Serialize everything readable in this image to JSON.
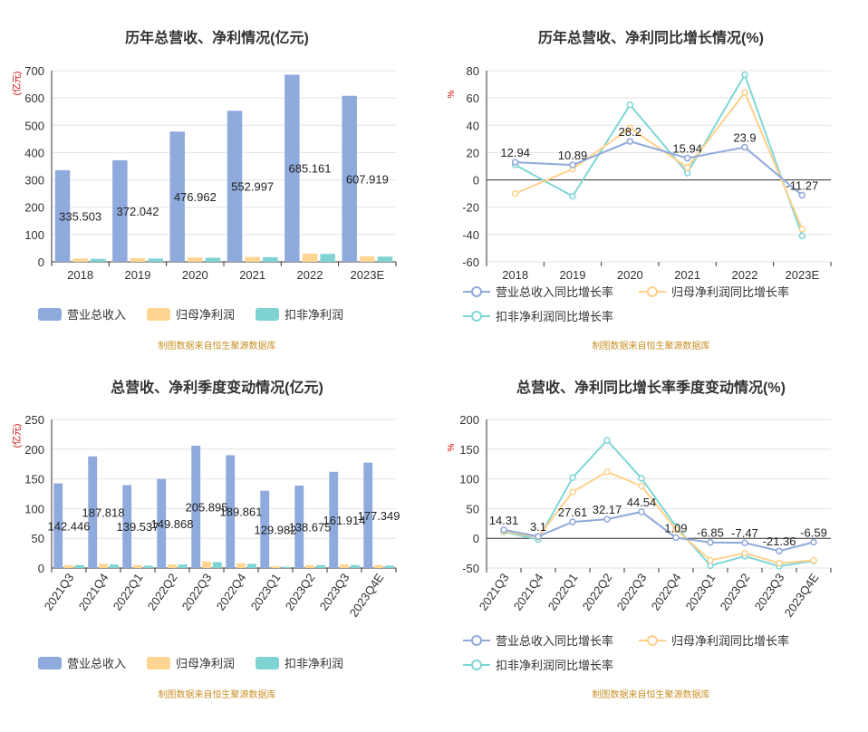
{
  "colors": {
    "revenue": "#8faadc",
    "net": "#ffd591",
    "deducted": "#7fd3d3",
    "revenue_line": "#8fa9db",
    "net_line": "#ffd08a",
    "deducted_line": "#7fd6d6",
    "source": "#c8922a",
    "ylabel": "#d00000"
  },
  "source_text": "制图数据来自恒生聚源数据库",
  "chart_data": [
    {
      "type": "bar",
      "title": "历年总营收、净利情况(亿元)",
      "ylabel": "(亿元)",
      "ylim": [
        0,
        700
      ],
      "yticks": [
        0,
        100,
        200,
        300,
        400,
        500,
        600,
        700
      ],
      "categories": [
        "2018",
        "2019",
        "2020",
        "2021",
        "2022",
        "2023E"
      ],
      "series": [
        {
          "name": "营业总收入",
          "values": [
            335.503,
            372.042,
            476.962,
            552.997,
            685.161,
            607.919
          ],
          "labels": [
            "335.503",
            "372.042",
            "476.962",
            "552.997",
            "685.161",
            "607.919"
          ]
        },
        {
          "name": "归母净利润",
          "values": [
            12,
            13,
            16,
            18,
            30,
            20
          ]
        },
        {
          "name": "扣非净利润",
          "values": [
            11,
            12,
            15,
            17,
            29,
            19
          ]
        }
      ],
      "legend": "bottom-left"
    },
    {
      "type": "line",
      "title": "历年总营收、净利同比增长情况(%)",
      "ylabel": "%",
      "ylim": [
        -60,
        80
      ],
      "yticks": [
        -60,
        -40,
        -20,
        0,
        20,
        40,
        60,
        80
      ],
      "categories": [
        "2018",
        "2019",
        "2020",
        "2021",
        "2022",
        "2023E"
      ],
      "series": [
        {
          "name": "营业总收入同比增长率",
          "values": [
            12.94,
            10.89,
            28.2,
            15.94,
            23.9,
            -11.27
          ],
          "labels": [
            "12.94",
            "10.89",
            "28.2",
            "15.94",
            "23.9",
            "-11.27"
          ]
        },
        {
          "name": "归母净利润同比增长率",
          "values": [
            -10,
            8,
            38,
            9,
            64,
            -36
          ]
        },
        {
          "name": "扣非净利润同比增长率",
          "values": [
            11,
            -12,
            55,
            5,
            77,
            -41
          ]
        }
      ],
      "legend": "bottom-left"
    },
    {
      "type": "bar",
      "title": "总营收、净利季度变动情况(亿元)",
      "ylabel": "(亿元)",
      "ylim": [
        0,
        250
      ],
      "yticks": [
        0,
        50,
        100,
        150,
        200,
        250
      ],
      "categories": [
        "2021Q3",
        "2021Q4",
        "2022Q1",
        "2022Q2",
        "2022Q3",
        "2022Q4",
        "2023Q1",
        "2023Q2",
        "2023Q3",
        "2023Q4E"
      ],
      "series": [
        {
          "name": "营业总收入",
          "values": [
            142.446,
            187.818,
            139.537,
            149.868,
            205.895,
            189.861,
            129.982,
            138.675,
            161.914,
            177.349
          ],
          "labels": [
            "142.446",
            "187.818",
            "139.537",
            "149.868",
            "205.895",
            "189.861",
            "129.982",
            "138.675",
            "161.914",
            "177.349"
          ]
        },
        {
          "name": "归母净利润",
          "values": [
            5,
            7,
            5,
            6,
            11,
            8,
            3,
            5,
            6,
            5
          ]
        },
        {
          "name": "扣非净利润",
          "values": [
            5,
            6,
            4,
            6,
            10,
            7,
            2,
            5,
            5,
            4
          ]
        }
      ],
      "legend": "bottom-left"
    },
    {
      "type": "line",
      "title": "总营收、净利同比增长率季度变动情况(%)",
      "ylabel": "%",
      "ylim": [
        -50,
        200
      ],
      "yticks": [
        -50,
        0,
        50,
        100,
        150,
        200
      ],
      "categories": [
        "2021Q3",
        "2021Q4",
        "2022Q1",
        "2022Q2",
        "2022Q3",
        "2022Q4",
        "2023Q1",
        "2023Q2",
        "2023Q3",
        "2023Q4E"
      ],
      "series": [
        {
          "name": "营业总收入同比增长率",
          "values": [
            14.31,
            3.1,
            27.61,
            32.17,
            44.54,
            1.09,
            -6.85,
            -7.47,
            -21.36,
            -6.59
          ],
          "labels": [
            "14.31",
            "3.1",
            "27.61",
            "32.17",
            "44.54",
            "1.09",
            "-6.85",
            "-7.47",
            "-21.36",
            "-6.59"
          ]
        },
        {
          "name": "归母净利润同比增长率",
          "values": [
            12,
            2,
            78,
            112,
            88,
            15,
            -37,
            -25,
            -42,
            -37
          ]
        },
        {
          "name": "扣非净利润同比增长率",
          "values": [
            11,
            -2,
            102,
            165,
            101,
            20,
            -46,
            -30,
            -47,
            -38
          ]
        }
      ],
      "legend": "bottom-left"
    }
  ]
}
